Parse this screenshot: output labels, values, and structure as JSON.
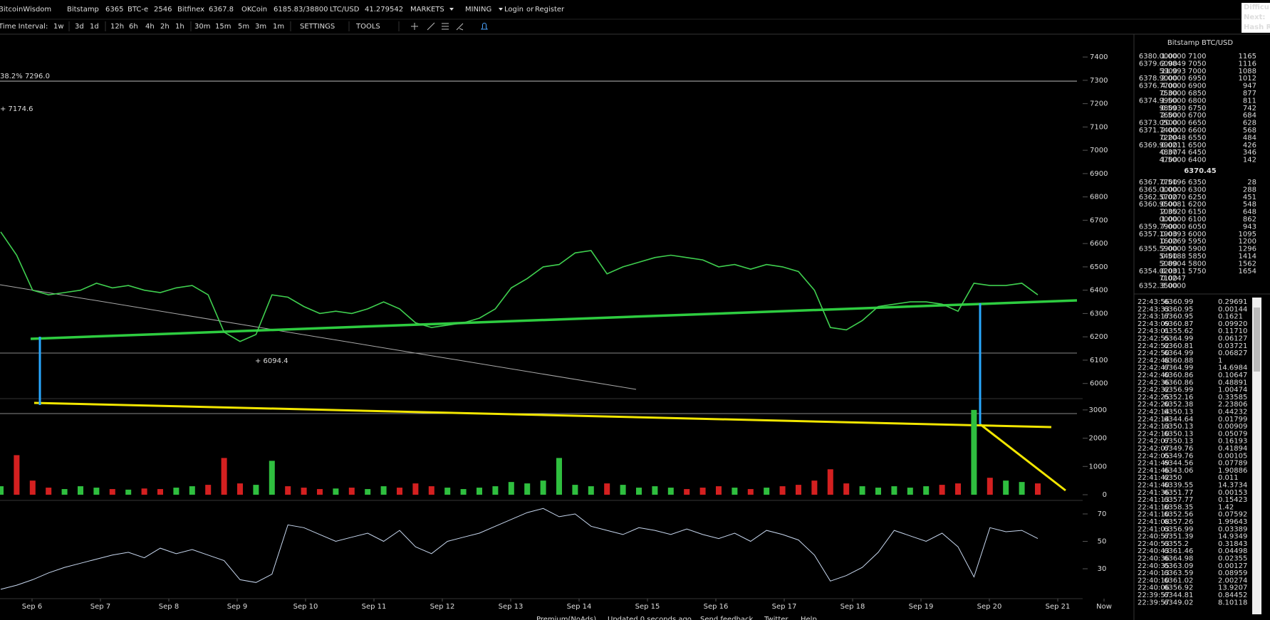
{
  "header": {
    "logo": "BitcoinWisdom",
    "active_exchange": "Bitstamp",
    "tickers": [
      {
        "name": "Bitstamp",
        "price": "6365"
      },
      {
        "name": "BTC-e",
        "price": "2546"
      },
      {
        "name": "Bitfinex",
        "price": "6367.8"
      },
      {
        "name": "OKCoin",
        "price": "6185.83/38800"
      },
      {
        "name": "LTC/USD",
        "price": "41.279542"
      }
    ],
    "menus": [
      "MARKETS",
      "MINING"
    ],
    "login": "Login",
    "or": "or",
    "register": "Register",
    "side_box": [
      "Difficu",
      "Next:",
      "Hash R"
    ]
  },
  "toolbar": {
    "label": "Time Interval:",
    "intervals": [
      "1w",
      "3d",
      "1d",
      "12h",
      "6h",
      "4h",
      "2h",
      "1h",
      "30m",
      "15m",
      "5m",
      "3m",
      "1m"
    ],
    "active": "1h",
    "settings": "SETTINGS",
    "tools": "TOOLS"
  },
  "chart_data": [
    {
      "type": "line",
      "color": "#3fcf4f",
      "x": [
        -11,
        -5.4,
        0.2,
        5.8,
        11.4,
        17,
        22.6,
        28.2,
        33.8,
        39.4,
        45,
        50.6,
        56.2,
        61.8,
        67.4,
        73,
        78.6,
        84.2,
        89.8,
        95.4,
        101,
        106.6,
        112.2,
        117.8,
        123.4,
        129,
        134.6,
        140.2,
        145.8,
        151.4,
        157,
        162.6,
        168.2,
        173.8,
        179.4,
        185,
        190.6,
        196.2,
        201.8,
        207.4,
        213,
        218.6,
        224.2,
        229.8,
        235.4,
        241,
        246.6,
        252.2,
        257.8,
        263.4,
        269,
        274.6,
        280.2,
        285.8,
        291.4,
        297,
        302.6,
        308.2,
        313.8,
        319.4,
        325,
        330.6,
        336.2,
        341.8,
        347.4,
        353
      ],
      "values": [
        6650,
        6550,
        6400,
        6380,
        6390,
        6400,
        6430,
        6410,
        6420,
        6400,
        6390,
        6410,
        6420,
        6380,
        6220,
        6180,
        6210,
        6380,
        6370,
        6330,
        6300,
        6310,
        6300,
        6320,
        6350,
        6320,
        6260,
        6240,
        6250,
        6260,
        6280,
        6320,
        6410,
        6450,
        6500,
        6510,
        6560,
        6570,
        6470,
        6500,
        6520,
        6540,
        6550,
        6540,
        6530,
        6500,
        6510,
        6490,
        6510,
        6500,
        6480,
        6400,
        6240,
        6230,
        6270,
        6330,
        6340,
        6350,
        6350,
        6340,
        6310,
        6430,
        6420,
        6420,
        6430,
        6380
      ],
      "xlim": [
        -11.25,
        386.75
      ],
      "ylim": [
        5935,
        7498
      ],
      "yticks": [
        6000,
        6100,
        6200,
        6300,
        6400,
        6500,
        6600,
        6700,
        6800,
        6900,
        7000,
        7100,
        7200,
        7300,
        7400
      ],
      "annotations": [
        "38.2% 7296.0",
        "+ 7174.6",
        "+ 6094.4"
      ]
    },
    {
      "type": "bar",
      "x": [
        -11,
        -5.4,
        0.2,
        5.8,
        11.4,
        17,
        22.6,
        28.2,
        33.8,
        39.4,
        45,
        50.6,
        56.2,
        61.8,
        67.4,
        73,
        78.6,
        84.2,
        89.8,
        95.4,
        101,
        106.6,
        112.2,
        117.8,
        123.4,
        129,
        134.6,
        140.2,
        145.8,
        151.4,
        157,
        162.6,
        168.2,
        173.8,
        179.4,
        185,
        190.6,
        196.2,
        201.8,
        207.4,
        213,
        218.6,
        224.2,
        229.8,
        235.4,
        241,
        246.6,
        252.2,
        257.8,
        263.4,
        269,
        274.6,
        280.2,
        285.8,
        291.4,
        297,
        302.6,
        308.2,
        313.8,
        319.4,
        325,
        330.6,
        336.2,
        341.8,
        347.4,
        353
      ],
      "values": [
        300,
        1400,
        500,
        250,
        200,
        300,
        250,
        200,
        180,
        220,
        200,
        250,
        300,
        350,
        1300,
        400,
        350,
        1200,
        300,
        250,
        200,
        220,
        250,
        200,
        300,
        250,
        400,
        300,
        250,
        200,
        250,
        300,
        450,
        400,
        500,
        1300,
        350,
        300,
        400,
        350,
        250,
        300,
        250,
        200,
        250,
        300,
        250,
        200,
        250,
        300,
        350,
        500,
        900,
        400,
        300,
        250,
        300,
        250,
        300,
        350,
        400,
        3000,
        600,
        500,
        450,
        400
      ],
      "up_color": "#2fbf3f",
      "down_color": "#d42020",
      "xlim": [
        -11.25,
        386.75
      ],
      "ylim": [
        0,
        3400
      ],
      "yticks": [
        0,
        1000,
        2000,
        3000
      ]
    },
    {
      "type": "line",
      "color": "#c8d8f0",
      "x": [
        -11,
        -5.4,
        0.2,
        5.8,
        11.4,
        17,
        22.6,
        28.2,
        33.8,
        39.4,
        45,
        50.6,
        56.2,
        61.8,
        67.4,
        73,
        78.6,
        84.2,
        89.8,
        95.4,
        101,
        106.6,
        112.2,
        117.8,
        123.4,
        129,
        134.6,
        140.2,
        145.8,
        151.4,
        157,
        162.6,
        168.2,
        173.8,
        179.4,
        185,
        190.6,
        196.2,
        201.8,
        207.4,
        213,
        218.6,
        224.2,
        229.8,
        235.4,
        241,
        246.6,
        252.2,
        257.8,
        263.4,
        269,
        274.6,
        280.2,
        285.8,
        291.4,
        297,
        302.6,
        308.2,
        313.8,
        319.4,
        325,
        330.6,
        336.2,
        341.8,
        347.4,
        353
      ],
      "values": [
        15,
        18,
        22,
        27,
        31,
        34,
        37,
        40,
        42,
        38,
        45,
        41,
        44,
        40,
        36,
        22,
        20,
        26,
        62,
        60,
        55,
        50,
        53,
        56,
        50,
        58,
        46,
        41,
        50,
        53,
        56,
        61,
        66,
        71,
        74,
        68,
        70,
        61,
        58,
        55,
        60,
        58,
        55,
        59,
        55,
        52,
        56,
        50,
        58,
        55,
        51,
        40,
        21,
        25,
        31,
        42,
        58,
        54,
        50,
        56,
        46,
        24,
        60,
        57,
        58,
        52
      ],
      "xlim": [
        -11.25,
        386.75
      ],
      "ylim": [
        10,
        78
      ],
      "yticks": [
        30,
        50,
        70
      ],
      "xticks": [
        {
          "value": 0,
          "label": "Sep 6"
        },
        {
          "value": 24,
          "label": "Sep 7"
        },
        {
          "value": 48,
          "label": "Sep 8"
        },
        {
          "value": 72,
          "label": "Sep 9"
        },
        {
          "value": 96,
          "label": "Sep 10"
        },
        {
          "value": 120,
          "label": "Sep 11"
        },
        {
          "value": 144,
          "label": "Sep 12"
        },
        {
          "value": 168,
          "label": "Sep 13"
        },
        {
          "value": 192,
          "label": "Sep 14"
        },
        {
          "value": 216,
          "label": "Sep 15"
        },
        {
          "value": 240,
          "label": "Sep 16"
        },
        {
          "value": 264,
          "label": "Sep 17"
        },
        {
          "value": 288,
          "label": "Sep 18"
        },
        {
          "value": 312,
          "label": "Sep 19"
        },
        {
          "value": 336,
          "label": "Sep 20"
        },
        {
          "value": 360,
          "label": "Sep 21"
        },
        {
          "value": 376.25,
          "label": "Now"
        }
      ]
    }
  ],
  "order_book": {
    "title": "Bitstamp BTC/USD",
    "asks": [
      [
        "6380.0000",
        "1.0000",
        "7100",
        "1165"
      ],
      [
        "6379.6000",
        "2.9849",
        "7050",
        "1116"
      ],
      [
        "5900",
        "11.993",
        "7000",
        "1088"
      ],
      [
        "6378.9000",
        "2.0000",
        "6950",
        "1012"
      ],
      [
        "6376.7700",
        "4.0000",
        "6900",
        "947"
      ],
      [
        "7500",
        "0.3000",
        "6850",
        "877"
      ],
      [
        "6374.9900",
        "1.5000",
        "6800",
        "811"
      ],
      [
        "9800",
        "0.5930",
        "6750",
        "742"
      ],
      [
        "7600",
        "2.5000",
        "6700",
        "684"
      ],
      [
        "6373.0500",
        "20.000",
        "6650",
        "628"
      ],
      [
        "6371.7400",
        "2.0000",
        "6600",
        "568"
      ],
      [
        "7200",
        "0.2048",
        "6550",
        "484"
      ],
      [
        "6369.9900",
        "0.0211",
        "6500",
        "426"
      ],
      [
        "4800",
        "0.3774",
        "6450",
        "346"
      ],
      [
        "4700",
        "1.5000",
        "6400",
        "142"
      ]
    ],
    "last": "6370.45",
    "bids": [
      [
        "6367.7700",
        "0.5196",
        "6350",
        "28"
      ],
      [
        "6365.0000",
        "1.0000",
        "6300",
        "288"
      ],
      [
        "6362.5700",
        "0.0270",
        "6250",
        "451"
      ],
      [
        "6360.9500",
        "0.0081",
        "6200",
        "548"
      ],
      [
        "1000",
        "2.3520",
        "6150",
        "648"
      ],
      [
        "0000",
        "1.0000",
        "6100",
        "862"
      ],
      [
        "6359.7900",
        "7.0000",
        "6050",
        "943"
      ],
      [
        "6357.1900",
        "0.0393",
        "6000",
        "1095"
      ],
      [
        "1600",
        "0.0269",
        "5950",
        "1200"
      ],
      [
        "6355.5900",
        "2.0000",
        "5900",
        "1296"
      ],
      [
        "5400",
        "0.5188",
        "5850",
        "1414"
      ],
      [
        "5000",
        "2.8904",
        "5800",
        "1562"
      ],
      [
        "6354.0200",
        "0.0311",
        "5750",
        "1654"
      ],
      [
        "7100",
        "0.0247"
      ],
      [
        "6352.3500",
        "3.0000"
      ]
    ]
  },
  "trades": {
    "rows": [
      [
        "22:43:56",
        "6360.99",
        "0.29691"
      ],
      [
        "22:43:33",
        "6360.95",
        "0.00144"
      ],
      [
        "22:43:17",
        "6360.95",
        "0.1621"
      ],
      [
        "22:43:09",
        "6360.87",
        "0.09920"
      ],
      [
        "22:43:01",
        "6355.62",
        "0.11710"
      ],
      [
        "22:42:55",
        "6364.99",
        "0.06127"
      ],
      [
        "22:42:52",
        "6360.81",
        "0.03721"
      ],
      [
        "22:42:50",
        "6364.99",
        "0.06827"
      ],
      [
        "22:42:48",
        "6360.88",
        "1"
      ],
      [
        "22:42:47",
        "6364.99",
        "14.6984"
      ],
      [
        "22:42:40",
        "6360.86",
        "0.10647"
      ],
      [
        "22:42:36",
        "6360.86",
        "0.48891"
      ],
      [
        "22:42:32",
        "6356.99",
        "1.00474"
      ],
      [
        "22:42:25",
        "6352.16",
        "0.33585"
      ],
      [
        "22:42:20",
        "6352.38",
        "2.23806"
      ],
      [
        "22:42:14",
        "6350.13",
        "0.44232"
      ],
      [
        "22:42:14",
        "6344.64",
        "0.01799"
      ],
      [
        "22:42:13",
        "6350.13",
        "0.00909"
      ],
      [
        "22:42:10",
        "6350.13",
        "0.05079"
      ],
      [
        "22:42:07",
        "6350.13",
        "0.16193"
      ],
      [
        "22:42:07",
        "6349.76",
        "0.41894"
      ],
      [
        "22:42:05",
        "6349.76",
        "0.00105"
      ],
      [
        "22:41:49",
        "6344.56",
        "0.07789"
      ],
      [
        "22:41:46",
        "6343.06",
        "1.90886"
      ],
      [
        "22:41:42",
        "6350",
        "0.011"
      ],
      [
        "22:41:40",
        "6339.55",
        "14.3734"
      ],
      [
        "22:41:36",
        "6351.77",
        "0.00153"
      ],
      [
        "22:41:13",
        "6357.77",
        "0.15423"
      ],
      [
        "22:41:10",
        "6358.35",
        "1.42"
      ],
      [
        "22:41:10",
        "6352.56",
        "0.07592"
      ],
      [
        "22:41:08",
        "6357.26",
        "1.99643"
      ],
      [
        "22:41:03",
        "6356.99",
        "0.03389"
      ],
      [
        "22:40:57",
        "6351.39",
        "14.9349"
      ],
      [
        "22:40:53",
        "6355.2",
        "0.31843"
      ],
      [
        "22:40:43",
        "6361.46",
        "0.04498"
      ],
      [
        "22:40:36",
        "6364.98",
        "0.02355"
      ],
      [
        "22:40:35",
        "6363.09",
        "0.00127"
      ],
      [
        "22:40:13",
        "6363.59",
        "0.08959"
      ],
      [
        "22:40:10",
        "6361.02",
        "2.00274"
      ],
      [
        "22:40:06",
        "6356.92",
        "13.9207"
      ],
      [
        "22:39:57",
        "6344.81",
        "0.84452"
      ],
      [
        "22:39:57",
        "6349.02",
        "8.10118"
      ]
    ],
    "up": [
      true,
      true,
      true,
      true,
      false,
      true,
      false,
      true,
      false,
      true,
      false,
      true,
      true,
      true,
      true,
      true,
      false,
      true,
      true,
      true,
      false,
      false,
      false,
      false,
      true,
      false,
      true,
      true,
      true,
      false,
      false,
      false,
      false,
      false,
      false,
      true,
      false,
      true,
      true,
      true,
      false,
      true
    ]
  },
  "footer": [
    "Premium(NoAds)",
    "Updated 0 seconds ago",
    "Send feedback",
    "Twitter",
    "Help"
  ]
}
